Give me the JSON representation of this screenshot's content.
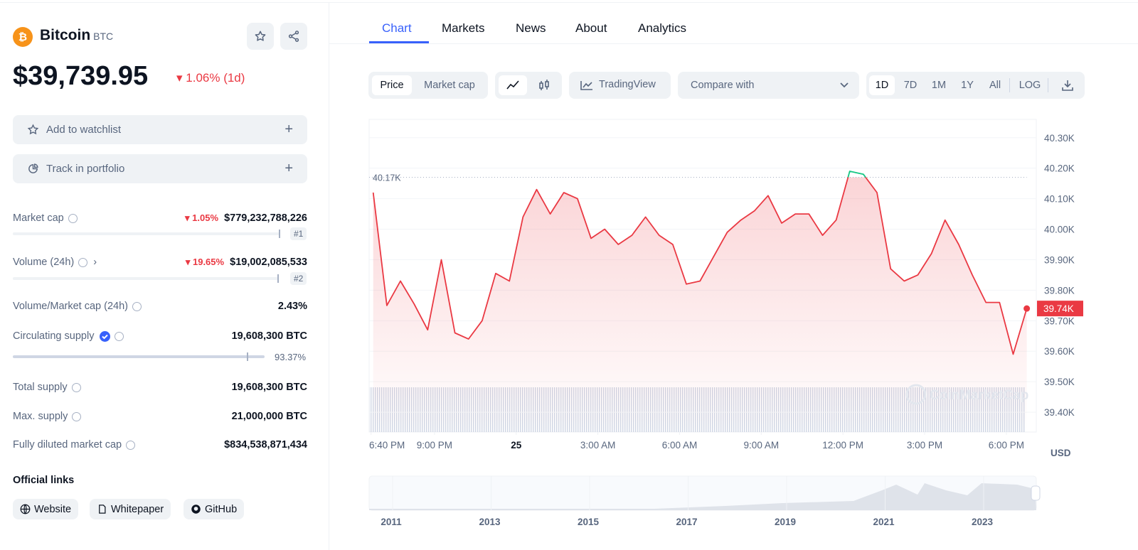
{
  "coin": {
    "name": "Bitcoin",
    "symbol": "BTC",
    "price": "$39,739.95",
    "change": "1.06% (1d)"
  },
  "actions": [
    "Add to watchlist",
    "Track in portfolio"
  ],
  "stats": [
    {
      "label": "Market cap",
      "change": "1.05%",
      "value": "$779,232,788,226",
      "rank": "#1"
    },
    {
      "label": "Volume (24h)",
      "change": "19.65%",
      "value": "$19,002,085,533",
      "rank": "#2"
    },
    {
      "label": "Volume/Market cap (24h)",
      "value": "2.43%"
    },
    {
      "label": "Circulating supply",
      "value": "19,608,300 BTC",
      "percent": "93.37%"
    },
    {
      "label": "Total supply",
      "value": "19,608,300 BTC"
    },
    {
      "label": "Max. supply",
      "value": "21,000,000 BTC"
    },
    {
      "label": "Fully diluted market cap",
      "value": "$834,538,871,434"
    }
  ],
  "links": {
    "title": "Official links",
    "items": [
      "Website",
      "Whitepaper",
      "GitHub"
    ]
  },
  "tabs": [
    "Chart",
    "Markets",
    "News",
    "About",
    "Analytics"
  ],
  "toolbar": {
    "type_toggle": [
      "Price",
      "Market cap"
    ],
    "tradingview": "TradingView",
    "compare": "Compare with",
    "ranges": [
      "1D",
      "7D",
      "1M",
      "1Y",
      "All"
    ],
    "log": "LOG"
  },
  "chart_data": {
    "type": "line",
    "color": "#ea3943",
    "color_above": "#16c784",
    "x": [
      18.75,
      19.25,
      19.75,
      20.25,
      20.75,
      21.25,
      21.75,
      22.25,
      22.75,
      23.25,
      23.75,
      24.25,
      24.75,
      25.25,
      25.75,
      26.25,
      26.75,
      27.25,
      27.75,
      28.25,
      28.75,
      29.25,
      29.75,
      30.25,
      30.75,
      31.25,
      31.75,
      32.25,
      32.75,
      33.25,
      33.75,
      34.25,
      34.75,
      35.25,
      35.75,
      36.25,
      36.75,
      37.25,
      37.75,
      38.25,
      38.75,
      39.25,
      39.75,
      40.25,
      40.75,
      41.25,
      41.75,
      42.25,
      42.75
    ],
    "values": [
      40120,
      39750,
      39830,
      39755,
      39670,
      39900,
      39660,
      39640,
      39700,
      39855,
      39830,
      40040,
      40130,
      40050,
      40120,
      40100,
      39970,
      40000,
      39950,
      39980,
      40040,
      39980,
      39950,
      39820,
      39830,
      39910,
      39990,
      40030,
      40060,
      40110,
      40020,
      40050,
      40050,
      39980,
      40030,
      40190,
      40180,
      40120,
      39870,
      39830,
      39850,
      39920,
      40030,
      39950,
      39850,
      39760,
      39760,
      39590,
      39740
    ],
    "xlim": [
      18.6,
      43.1
    ],
    "ylim": [
      39335,
      40360
    ],
    "xticks": [
      {
        "value": 18.67,
        "label": "6:40 PM"
      },
      {
        "value": 21,
        "label": "9:00 PM"
      },
      {
        "value": 24,
        "label": "25"
      },
      {
        "value": 27,
        "label": "3:00 AM"
      },
      {
        "value": 30,
        "label": "6:00 AM"
      },
      {
        "value": 33,
        "label": "9:00 AM"
      },
      {
        "value": 36,
        "label": "12:00 PM"
      },
      {
        "value": 39,
        "label": "3:00 PM"
      },
      {
        "value": 42,
        "label": "6:00 PM"
      }
    ],
    "yticks": [
      {
        "value": 39400,
        "label": "39.40K"
      },
      {
        "value": 39500,
        "label": "39.50K"
      },
      {
        "value": 39600,
        "label": "39.60K"
      },
      {
        "value": 39700,
        "label": "39.70K"
      },
      {
        "value": 39800,
        "label": "39.80K"
      },
      {
        "value": 39900,
        "label": "39.90K"
      },
      {
        "value": 40000,
        "label": "40.00K"
      },
      {
        "value": 40100,
        "label": "40.10K"
      },
      {
        "value": 40200,
        "label": "40.20K"
      },
      {
        "value": 40300,
        "label": "40.30K"
      }
    ],
    "grid": true,
    "reference": {
      "value": 40170,
      "label": "40.17K"
    },
    "price_tag": "39.74K",
    "currency": "USD",
    "watermark": "CoinMarketCap"
  },
  "navigator": {
    "years": [
      "2011",
      "2013",
      "2015",
      "2017",
      "2019",
      "2021",
      "2023"
    ]
  }
}
